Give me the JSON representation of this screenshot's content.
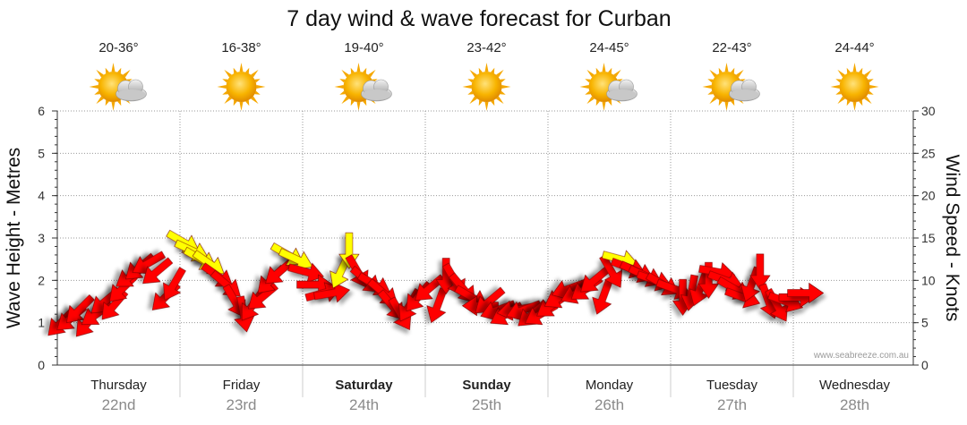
{
  "chart_data": {
    "type": "line",
    "title": "7 day wind & wave forecast for Curban",
    "ylabel_left": "Wave Height - Metres",
    "ylabel_right": "Wind Speed - Knots",
    "ylim_left": [
      0,
      6
    ],
    "ylim_right": [
      0,
      30
    ],
    "yticks_left": [
      "0",
      "1",
      "2",
      "3",
      "4",
      "5",
      "6"
    ],
    "yticks_right": [
      "0",
      "5",
      "10",
      "15",
      "20",
      "25",
      "30"
    ],
    "grid": true,
    "watermark": "www.seabreeze.com.au",
    "colors": {
      "strong_arrow": "#ff0000",
      "light_arrow": "#ffff00",
      "sun": "#f5a800",
      "cloud": "#b8b8b8",
      "grid": "#999999",
      "axis": "#333333"
    },
    "days": [
      {
        "name": "Thursday",
        "date": "22nd",
        "temp": "20-36°",
        "icon": "partly-cloudy-icon",
        "bold": false
      },
      {
        "name": "Friday",
        "date": "23rd",
        "temp": "16-38°",
        "icon": "sunny-icon",
        "bold": false
      },
      {
        "name": "Saturday",
        "date": "24th",
        "temp": "19-40°",
        "icon": "partly-cloudy-icon",
        "bold": true
      },
      {
        "name": "Sunday",
        "date": "25th",
        "temp": "23-42°",
        "icon": "sunny-icon",
        "bold": true
      },
      {
        "name": "Monday",
        "date": "26th",
        "temp": "24-45°",
        "icon": "partly-cloudy-icon",
        "bold": false
      },
      {
        "name": "Tuesday",
        "date": "27th",
        "temp": "22-43°",
        "icon": "partly-cloudy-icon",
        "bold": false
      },
      {
        "name": "Wednesday",
        "date": "28th",
        "temp": "24-44°",
        "icon": "sunny-icon",
        "bold": false
      }
    ],
    "wind": [
      {
        "t": 0.0,
        "kn": 5.0,
        "dir": 225,
        "c": "red"
      },
      {
        "t": 0.08,
        "kn": 5.5,
        "dir": 230,
        "c": "red"
      },
      {
        "t": 0.15,
        "kn": 6.5,
        "dir": 225,
        "c": "red"
      },
      {
        "t": 0.22,
        "kn": 5.0,
        "dir": 220,
        "c": "red"
      },
      {
        "t": 0.29,
        "kn": 6.0,
        "dir": 235,
        "c": "red"
      },
      {
        "t": 0.36,
        "kn": 7.5,
        "dir": 230,
        "c": "red"
      },
      {
        "t": 0.43,
        "kn": 7.0,
        "dir": 220,
        "c": "red"
      },
      {
        "t": 0.5,
        "kn": 9.0,
        "dir": 225,
        "c": "red"
      },
      {
        "t": 0.57,
        "kn": 10.5,
        "dir": 235,
        "c": "red"
      },
      {
        "t": 0.64,
        "kn": 11.5,
        "dir": 230,
        "c": "red"
      },
      {
        "t": 0.71,
        "kn": 12.0,
        "dir": 240,
        "c": "red"
      },
      {
        "t": 0.78,
        "kn": 11.0,
        "dir": 230,
        "c": "red"
      },
      {
        "t": 0.85,
        "kn": 8.0,
        "dir": 225,
        "c": "red"
      },
      {
        "t": 0.92,
        "kn": 9.5,
        "dir": 210,
        "c": "red"
      },
      {
        "t": 1.0,
        "kn": 14.5,
        "dir": 120,
        "c": "yellow"
      },
      {
        "t": 1.07,
        "kn": 13.5,
        "dir": 115,
        "c": "yellow"
      },
      {
        "t": 1.14,
        "kn": 12.5,
        "dir": 120,
        "c": "yellow"
      },
      {
        "t": 1.21,
        "kn": 12.0,
        "dir": 125,
        "c": "yellow"
      },
      {
        "t": 1.28,
        "kn": 10.5,
        "dir": 125,
        "c": "red"
      },
      {
        "t": 1.35,
        "kn": 9.5,
        "dir": 130,
        "c": "red"
      },
      {
        "t": 1.42,
        "kn": 7.5,
        "dir": 150,
        "c": "red"
      },
      {
        "t": 1.49,
        "kn": 6.0,
        "dir": 170,
        "c": "red"
      },
      {
        "t": 1.56,
        "kn": 7.0,
        "dir": 215,
        "c": "red"
      },
      {
        "t": 1.64,
        "kn": 8.0,
        "dir": 230,
        "c": "red"
      },
      {
        "t": 1.71,
        "kn": 10.0,
        "dir": 225,
        "c": "red"
      },
      {
        "t": 1.78,
        "kn": 11.0,
        "dir": 230,
        "c": "red"
      },
      {
        "t": 1.85,
        "kn": 13.0,
        "dir": 120,
        "c": "yellow"
      },
      {
        "t": 1.92,
        "kn": 12.5,
        "dir": 115,
        "c": "yellow"
      },
      {
        "t": 2.0,
        "kn": 11.0,
        "dir": 105,
        "c": "red"
      },
      {
        "t": 2.07,
        "kn": 9.5,
        "dir": 90,
        "c": "red"
      },
      {
        "t": 2.14,
        "kn": 8.5,
        "dir": 75,
        "c": "red"
      },
      {
        "t": 2.21,
        "kn": 8.5,
        "dir": 80,
        "c": "red"
      },
      {
        "t": 2.28,
        "kn": 11.0,
        "dir": 205,
        "c": "yellow"
      },
      {
        "t": 2.35,
        "kn": 13.5,
        "dir": 180,
        "c": "yellow"
      },
      {
        "t": 2.42,
        "kn": 11.0,
        "dir": 150,
        "c": "red"
      },
      {
        "t": 2.49,
        "kn": 10.0,
        "dir": 130,
        "c": "red"
      },
      {
        "t": 2.56,
        "kn": 9.5,
        "dir": 120,
        "c": "red"
      },
      {
        "t": 2.63,
        "kn": 8.5,
        "dir": 130,
        "c": "red"
      },
      {
        "t": 2.7,
        "kn": 7.0,
        "dir": 140,
        "c": "red"
      },
      {
        "t": 2.77,
        "kn": 6.0,
        "dir": 150,
        "c": "red"
      },
      {
        "t": 2.84,
        "kn": 7.0,
        "dir": 210,
        "c": "red"
      },
      {
        "t": 2.91,
        "kn": 8.0,
        "dir": 220,
        "c": "red"
      },
      {
        "t": 3.0,
        "kn": 9.0,
        "dir": 230,
        "c": "red"
      },
      {
        "t": 3.07,
        "kn": 7.0,
        "dir": 200,
        "c": "red"
      },
      {
        "t": 3.14,
        "kn": 10.5,
        "dir": 180,
        "c": "red"
      },
      {
        "t": 3.21,
        "kn": 10.0,
        "dir": 150,
        "c": "red"
      },
      {
        "t": 3.28,
        "kn": 9.0,
        "dir": 140,
        "c": "red"
      },
      {
        "t": 3.35,
        "kn": 8.0,
        "dir": 120,
        "c": "red"
      },
      {
        "t": 3.42,
        "kn": 7.0,
        "dir": 270,
        "c": "red"
      },
      {
        "t": 3.49,
        "kn": 7.5,
        "dir": 230,
        "c": "red"
      },
      {
        "t": 3.56,
        "kn": 6.5,
        "dir": 250,
        "c": "red"
      },
      {
        "t": 3.63,
        "kn": 6.0,
        "dir": 240,
        "c": "red"
      },
      {
        "t": 3.7,
        "kn": 6.5,
        "dir": 260,
        "c": "red"
      },
      {
        "t": 3.77,
        "kn": 6.5,
        "dir": 250,
        "c": "red"
      },
      {
        "t": 3.84,
        "kn": 6.0,
        "dir": 230,
        "c": "red"
      },
      {
        "t": 3.91,
        "kn": 6.0,
        "dir": 240,
        "c": "red"
      },
      {
        "t": 4.0,
        "kn": 7.0,
        "dir": 235,
        "c": "red"
      },
      {
        "t": 4.07,
        "kn": 8.0,
        "dir": 240,
        "c": "red"
      },
      {
        "t": 4.14,
        "kn": 9.0,
        "dir": 250,
        "c": "red"
      },
      {
        "t": 4.21,
        "kn": 8.5,
        "dir": 245,
        "c": "red"
      },
      {
        "t": 4.28,
        "kn": 9.0,
        "dir": 235,
        "c": "red"
      },
      {
        "t": 4.35,
        "kn": 10.0,
        "dir": 230,
        "c": "red"
      },
      {
        "t": 4.42,
        "kn": 8.0,
        "dir": 200,
        "c": "red"
      },
      {
        "t": 4.49,
        "kn": 11.0,
        "dir": 150,
        "c": "red"
      },
      {
        "t": 4.56,
        "kn": 12.5,
        "dir": 105,
        "c": "yellow"
      },
      {
        "t": 4.63,
        "kn": 11.5,
        "dir": 110,
        "c": "red"
      },
      {
        "t": 4.7,
        "kn": 11.0,
        "dir": 115,
        "c": "red"
      },
      {
        "t": 4.77,
        "kn": 10.5,
        "dir": 115,
        "c": "red"
      },
      {
        "t": 4.84,
        "kn": 10.0,
        "dir": 110,
        "c": "red"
      },
      {
        "t": 4.91,
        "kn": 9.5,
        "dir": 120,
        "c": "red"
      },
      {
        "t": 5.0,
        "kn": 9.0,
        "dir": 110,
        "c": "red"
      },
      {
        "t": 5.07,
        "kn": 8.0,
        "dir": 180,
        "c": "red"
      },
      {
        "t": 5.14,
        "kn": 8.5,
        "dir": 190,
        "c": "red"
      },
      {
        "t": 5.21,
        "kn": 9.0,
        "dir": 200,
        "c": "red"
      },
      {
        "t": 5.28,
        "kn": 10.0,
        "dir": 180,
        "c": "red"
      },
      {
        "t": 5.35,
        "kn": 11.0,
        "dir": 100,
        "c": "red"
      },
      {
        "t": 5.42,
        "kn": 10.0,
        "dir": 110,
        "c": "red"
      },
      {
        "t": 5.49,
        "kn": 9.0,
        "dir": 120,
        "c": "red"
      },
      {
        "t": 5.56,
        "kn": 8.0,
        "dir": 110,
        "c": "red"
      },
      {
        "t": 5.63,
        "kn": 9.5,
        "dir": 200,
        "c": "red"
      },
      {
        "t": 5.7,
        "kn": 11.0,
        "dir": 180,
        "c": "red"
      },
      {
        "t": 5.77,
        "kn": 7.5,
        "dir": 160,
        "c": "red"
      },
      {
        "t": 5.84,
        "kn": 7.0,
        "dir": 150,
        "c": "red"
      },
      {
        "t": 5.91,
        "kn": 7.5,
        "dir": 110,
        "c": "red"
      },
      {
        "t": 6.0,
        "kn": 8.0,
        "dir": 90,
        "c": "red"
      },
      {
        "t": 6.07,
        "kn": 8.5,
        "dir": 90,
        "c": "red"
      }
    ]
  }
}
